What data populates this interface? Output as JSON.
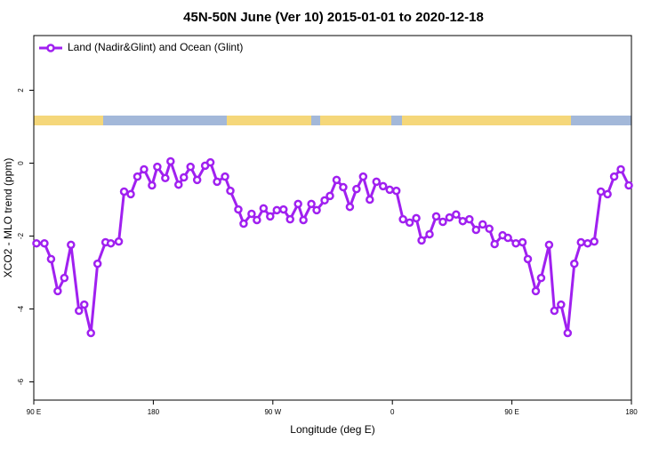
{
  "chart_data": {
    "type": "line",
    "title": "45N-50N June (Ver 10)   2015-01-01 to 2020-12-18",
    "x_label": "Longitude (deg E)",
    "y_label": "XCO2 - MLO trend (ppm)",
    "xlim": [
      90,
      540
    ],
    "ylim": [
      -6.5,
      3.5
    ],
    "xticks": [
      {
        "value": 90,
        "label": "90 E"
      },
      180,
      {
        "value": 270,
        "label": "90 W"
      },
      {
        "value": 360,
        "label": "0"
      },
      {
        "value": 450,
        "label": "90 E"
      },
      {
        "value": 540,
        "label": "180"
      }
    ],
    "yticks": [
      -6,
      -4,
      -2,
      0,
      2
    ],
    "legend_position": "upper left",
    "x": [
      92,
      98,
      103,
      108,
      113,
      118,
      124,
      128,
      133,
      138,
      144,
      148,
      154,
      158,
      163,
      168,
      173,
      179,
      183,
      189,
      193,
      199,
      203,
      208,
      213,
      219,
      223,
      228,
      234,
      238,
      244,
      248,
      254,
      258,
      263,
      268,
      273,
      278,
      283,
      289,
      293,
      299,
      303,
      309,
      313,
      318,
      323,
      328,
      333,
      338,
      343,
      348,
      353,
      358,
      363,
      368,
      373,
      378,
      382,
      388,
      393,
      398,
      403,
      408,
      413,
      418,
      423,
      428,
      433,
      437,
      443,
      447,
      453,
      458,
      462,
      468,
      472,
      478,
      482,
      487,
      492,
      497,
      502,
      507,
      512,
      517,
      522,
      527,
      532,
      538
    ],
    "series": [
      {
        "name": "Land (Nadir&Glint) and Ocean (Glint)",
        "color": "#a020f0",
        "values": [
          -2.2,
          -2.2,
          -2.63,
          -3.51,
          -3.15,
          -2.24,
          -4.05,
          -3.88,
          -4.66,
          -2.76,
          -2.17,
          -2.2,
          -2.15,
          -0.78,
          -0.85,
          -0.37,
          -0.17,
          -0.61,
          -0.1,
          -0.41,
          0.05,
          -0.59,
          -0.39,
          -0.1,
          -0.46,
          -0.07,
          0.02,
          -0.51,
          -0.37,
          -0.76,
          -1.27,
          -1.66,
          -1.39,
          -1.56,
          -1.24,
          -1.46,
          -1.29,
          -1.27,
          -1.54,
          -1.12,
          -1.56,
          -1.12,
          -1.29,
          -1.02,
          -0.9,
          -0.46,
          -0.66,
          -1.2,
          -0.71,
          -0.37,
          -1.0,
          -0.51,
          -0.63,
          -0.73,
          -0.76,
          -1.54,
          -1.63,
          -1.51,
          -2.12,
          -1.95,
          -1.46,
          -1.61,
          -1.49,
          -1.41,
          -1.59,
          -1.54,
          -1.83,
          -1.68,
          -1.8,
          -2.22,
          -1.98,
          -2.05,
          -2.2,
          -2.17,
          -2.63,
          -3.51,
          -3.15,
          -2.24,
          -4.05,
          -3.88,
          -4.66,
          -2.76,
          -2.17,
          -2.2,
          -2.15,
          -0.78,
          -0.85,
          -0.37,
          -0.17,
          -0.61
        ]
      }
    ]
  }
}
